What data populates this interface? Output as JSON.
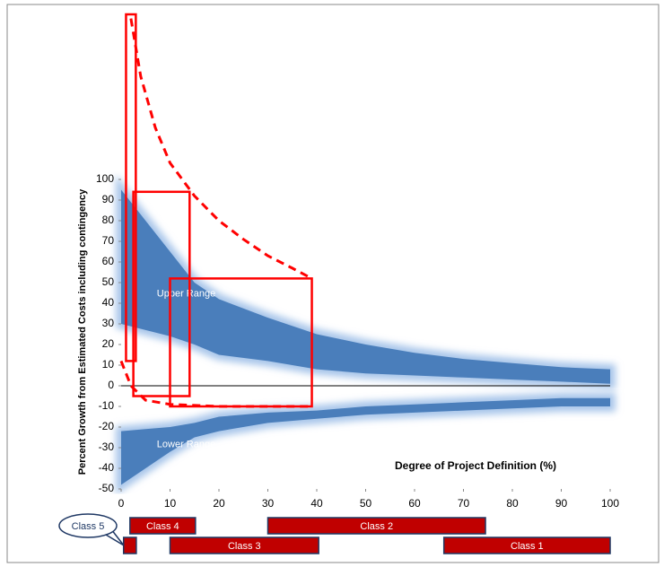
{
  "chart_data": {
    "type": "range_band",
    "x_label": "Degree of Project Definition (%)",
    "y_label": "Percent Growth from Estimated Costs including contingency",
    "xlim": [
      0,
      100
    ],
    "xticks": [
      0,
      10,
      20,
      30,
      40,
      50,
      60,
      70,
      80,
      90,
      100
    ],
    "ylim": [
      -50,
      180
    ],
    "yticks": [
      -50,
      -40,
      -30,
      -20,
      -10,
      0,
      10,
      20,
      30,
      40,
      50,
      60,
      70,
      80,
      90,
      100
    ],
    "zero_line": true,
    "bands": [
      {
        "name": "Upper Range",
        "color": "#4a7ebb",
        "glow": "#a9c6ea",
        "x": [
          0,
          5,
          10,
          15,
          20,
          30,
          40,
          50,
          60,
          70,
          80,
          90,
          100
        ],
        "upper": [
          95,
          80,
          65,
          50,
          42,
          33,
          25,
          20,
          16,
          13,
          11,
          9,
          8
        ],
        "lower": [
          30,
          27,
          24,
          20,
          15,
          12,
          8,
          6,
          5,
          4,
          3,
          2,
          1
        ]
      },
      {
        "name": "Lower Range",
        "color": "#4a7ebb",
        "glow": "#a9c6ea",
        "x": [
          0,
          5,
          10,
          15,
          20,
          30,
          40,
          50,
          60,
          70,
          80,
          90,
          100
        ],
        "upper": [
          -22,
          -21,
          -20,
          -18,
          -15,
          -13,
          -12,
          -10,
          -9,
          -8,
          -7,
          -6,
          -6
        ],
        "lower": [
          -48,
          -40,
          -32,
          -25,
          -22,
          -18,
          -16,
          -14,
          -13,
          -12,
          -11,
          -10,
          -10
        ]
      }
    ],
    "boxes_color": "#ff0000",
    "boxes": [
      {
        "x": [
          1,
          3
        ],
        "y": [
          12,
          180
        ]
      },
      {
        "x": [
          2.5,
          14
        ],
        "y": [
          -5,
          94
        ]
      },
      {
        "x": [
          10,
          39
        ],
        "y": [
          -10,
          52
        ]
      }
    ],
    "dashed": [
      {
        "x": [
          2,
          4,
          7,
          10,
          15,
          20,
          25,
          30,
          35,
          39
        ],
        "y": [
          178,
          150,
          125,
          108,
          92,
          80,
          71,
          63,
          57,
          52
        ]
      },
      {
        "x": [
          0,
          2,
          5,
          10,
          20,
          39
        ],
        "y": [
          12,
          0,
          -7,
          -9,
          -10,
          -10
        ]
      }
    ],
    "classes_color": "#c00000",
    "classes": [
      {
        "name": "Class 4",
        "start": 1.8,
        "end": 15.2
      },
      {
        "name": "Class 2",
        "start": 30,
        "end": 74.5
      },
      {
        "name": "Class 5",
        "start": 0.5,
        "end": 3.1,
        "callout": true
      },
      {
        "name": "Class 3",
        "start": 10,
        "end": 40.4
      },
      {
        "name": "Class 1",
        "start": 66,
        "end": 100
      }
    ]
  }
}
